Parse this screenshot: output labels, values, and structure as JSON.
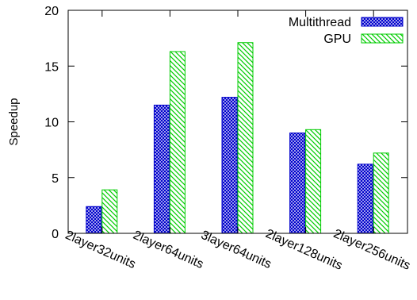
{
  "chart_data": {
    "type": "bar",
    "title": "",
    "xlabel": "",
    "ylabel": "Speedup",
    "ylim": [
      0,
      20
    ],
    "yticks": [
      0,
      5,
      10,
      15,
      20
    ],
    "grid": false,
    "legend_position": "top-right",
    "categories": [
      "2layer32units",
      "2layer64units",
      "3layer64units",
      "2layer128units",
      "2layer256units"
    ],
    "series": [
      {
        "name": "Multithread",
        "values": [
          2.4,
          11.5,
          12.2,
          9.0,
          6.2
        ],
        "color": "#0000cc",
        "pattern": "crosshatch"
      },
      {
        "name": "GPU",
        "values": [
          3.9,
          16.3,
          17.1,
          9.3,
          7.2
        ],
        "color": "#00cc00",
        "pattern": "diagonal"
      }
    ]
  }
}
